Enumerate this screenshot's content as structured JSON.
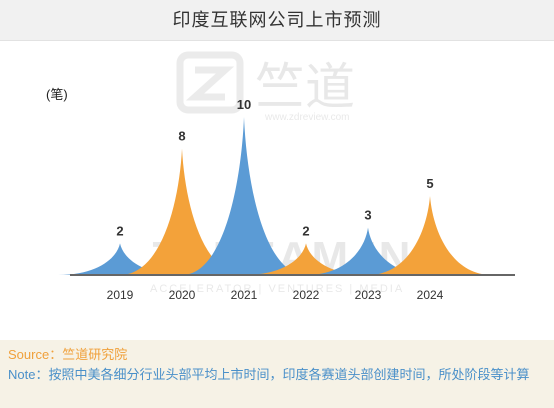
{
  "title": "印度互联网公司上市预测",
  "unit": "(笔)",
  "watermark": {
    "brand": "竺道",
    "url": "www.zdreview.com",
    "big": "ZDREAM.IN",
    "tagline": "ACCELERATOR | VENTURES | MEDIA"
  },
  "colors": {
    "blue": "#5b9bd5",
    "orange": "#f3a23a",
    "baseline": "#666666",
    "label": "#333333"
  },
  "chart_data": {
    "type": "area",
    "title": "印度互联网公司上市预测",
    "ylabel": "(笔)",
    "categories": [
      "2019",
      "2020",
      "2021",
      "2022",
      "2023",
      "2024"
    ],
    "values": [
      2,
      8,
      10,
      2,
      3,
      5
    ],
    "series_colors": [
      "blue",
      "orange",
      "blue",
      "orange",
      "blue",
      "orange"
    ],
    "ylim": [
      0,
      10
    ],
    "grid": false
  },
  "footer": {
    "source": "Source：竺道研究院",
    "note": "Note：按照中美各细分行业头部平均上市时间，印度各赛道头部创建时间，所处阶段等计算"
  }
}
